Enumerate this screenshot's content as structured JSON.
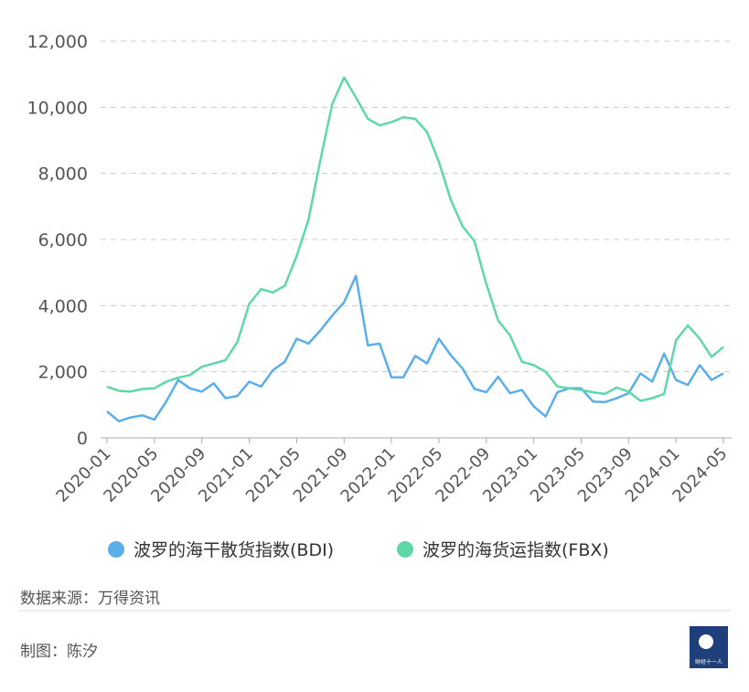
{
  "chart_data": {
    "type": "line",
    "categories": [
      "2020-01",
      null,
      null,
      null,
      "2020-05",
      null,
      null,
      null,
      "2020-09",
      null,
      null,
      null,
      "2021-01",
      null,
      null,
      null,
      "2021-05",
      null,
      null,
      null,
      "2021-09",
      null,
      null,
      null,
      "2022-01",
      null,
      null,
      null,
      "2022-05",
      null,
      null,
      null,
      "2022-09",
      null,
      null,
      null,
      "2023-01",
      null,
      null,
      null,
      "2023-05",
      null,
      null,
      null,
      "2023-09",
      null,
      null,
      null,
      "2024-01",
      null,
      null,
      null,
      "2024-05"
    ],
    "series": [
      {
        "name": "波罗的海干散货指数(BDI)",
        "color": "#5aaeea",
        "values": [
          800,
          500,
          620,
          680,
          550,
          1100,
          1750,
          1500,
          1400,
          1650,
          1200,
          1270,
          1700,
          1550,
          2050,
          2300,
          3000,
          2850,
          3250,
          3700,
          4100,
          4900,
          2800,
          2850,
          1830,
          1830,
          2480,
          2250,
          3000,
          2500,
          2100,
          1480,
          1380,
          1850,
          1350,
          1450,
          950,
          650,
          1380,
          1500,
          1500,
          1100,
          1080,
          1200,
          1350,
          1950,
          1700,
          2550,
          1750,
          1600,
          2200,
          1750,
          1950
        ]
      },
      {
        "name": "波罗的海货运指数(FBX)",
        "color": "#5fd8a8",
        "values": [
          1550,
          1420,
          1400,
          1480,
          1500,
          1700,
          1820,
          1900,
          2150,
          2250,
          2350,
          2900,
          4050,
          4500,
          4400,
          4600,
          5500,
          6600,
          8400,
          10100,
          10900,
          10300,
          9650,
          9450,
          9550,
          9700,
          9650,
          9250,
          8350,
          7200,
          6400,
          5950,
          4650,
          3550,
          3100,
          2300,
          2200,
          2000,
          1550,
          1500,
          1450,
          1380,
          1330,
          1520,
          1400,
          1120,
          1200,
          1330,
          2950,
          3400,
          3000,
          2450,
          2750
        ]
      }
    ],
    "ylim": [
      0,
      12000
    ],
    "yticks": [
      0,
      {
        "value": 2000,
        "label": "2,000"
      },
      {
        "value": 4000,
        "label": "4,000"
      },
      {
        "value": 6000,
        "label": "6,000"
      },
      {
        "value": 8000,
        "label": "8,000"
      },
      {
        "value": 10000,
        "label": "10,000"
      },
      {
        "value": 12000,
        "label": "12,000"
      }
    ],
    "grid": true,
    "legend": "bottom"
  },
  "footer": {
    "source": "数据来源：万得资讯",
    "credit": "制图：陈汐",
    "logo": "财经十一人"
  }
}
